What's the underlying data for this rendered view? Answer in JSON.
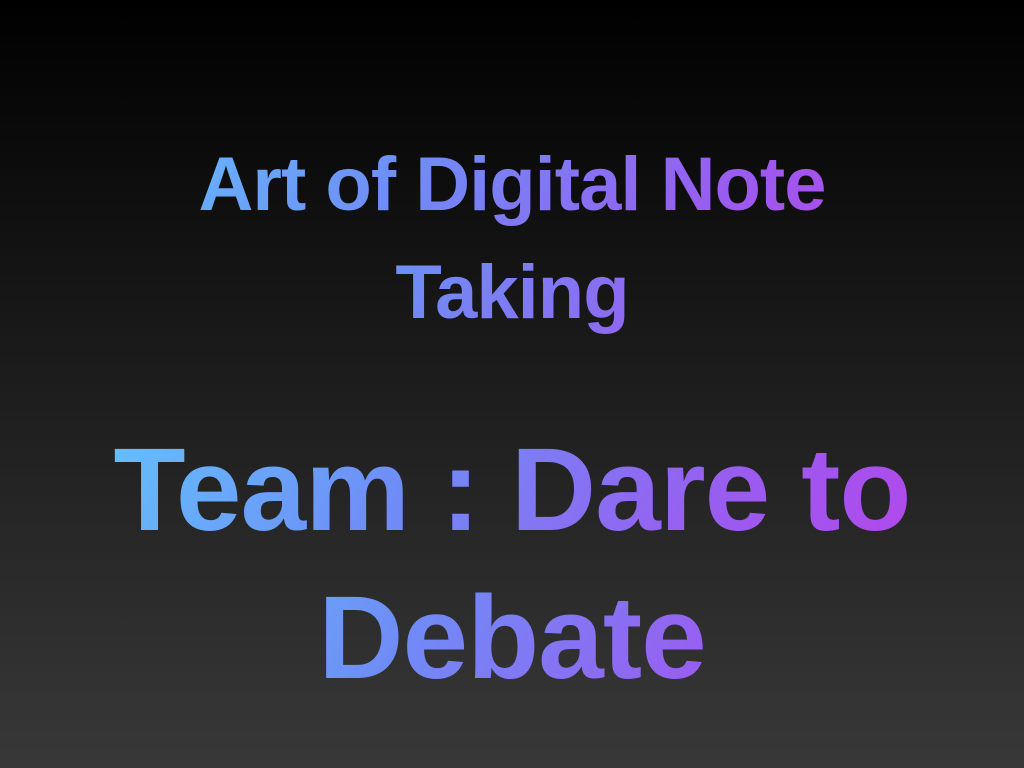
{
  "slide": {
    "title_line1": "Art of Digital Note",
    "title_line2": "Taking",
    "subtitle_line1": "Team : Dare to",
    "subtitle_line2": "Debate"
  },
  "colors": {
    "background_top": "#000000",
    "background_bottom": "#383838",
    "gradient_start": "#5fd3ff",
    "gradient_mid": "#6f8cf6",
    "gradient_mid2": "#9a5cf0",
    "gradient_end": "#c03ce8"
  }
}
